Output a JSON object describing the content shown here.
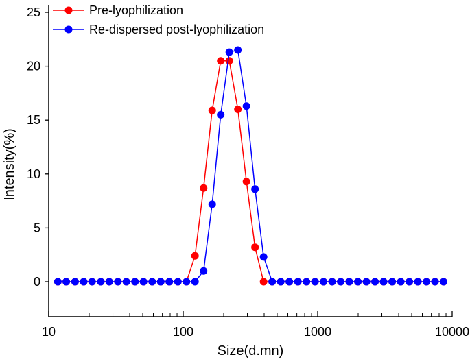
{
  "chart_data": {
    "type": "line",
    "xlabel": "Size(d.mn)",
    "ylabel": "Intensity(%)",
    "xscale": "log",
    "xlim": [
      10,
      10000
    ],
    "ylim": [
      -3.2,
      25.5
    ],
    "xticks": [
      "10",
      "100",
      "1000",
      "10000"
    ],
    "yticks": [
      "0",
      "5",
      "10",
      "15",
      "20",
      "25"
    ],
    "grid": false,
    "legend_position": "top-left",
    "x": [
      11.7,
      13.5,
      15.7,
      18.2,
      21.0,
      24.4,
      28.2,
      32.7,
      37.8,
      43.8,
      50.7,
      58.8,
      68.1,
      78.8,
      91.3,
      105.7,
      122.4,
      141.8,
      164.2,
      190.1,
      220.2,
      255.0,
      295.3,
      342.0,
      396.1,
      458.7,
      531.2,
      615.1,
      712.4,
      825.0,
      955.4,
      1106,
      1281,
      1484,
      1718,
      1990,
      2305,
      2669,
      3091,
      3580,
      4145,
      4801,
      5560,
      6439,
      7456,
      8635
    ],
    "series": [
      {
        "name": "Pre-lyophilization",
        "color": "#ff0000",
        "values": [
          0,
          0,
          0,
          0,
          0,
          0,
          0,
          0,
          0,
          0,
          0,
          0,
          0,
          0,
          0,
          0,
          2.4,
          8.7,
          15.9,
          20.5,
          20.5,
          16.0,
          9.3,
          3.2,
          0,
          0,
          0,
          0,
          0,
          0,
          0,
          0,
          0,
          0,
          0,
          0,
          0,
          0,
          0,
          0,
          0,
          0,
          0,
          0,
          0,
          0
        ]
      },
      {
        "name": "Re-dispersed post-lyophilization",
        "color": "#0000ff",
        "values": [
          0,
          0,
          0,
          0,
          0,
          0,
          0,
          0,
          0,
          0,
          0,
          0,
          0,
          0,
          0,
          0,
          0,
          1.0,
          7.2,
          15.5,
          21.3,
          21.5,
          16.3,
          8.6,
          2.3,
          0,
          0,
          0,
          0,
          0,
          0,
          0,
          0,
          0,
          0,
          0,
          0,
          0,
          0,
          0,
          0,
          0,
          0,
          0,
          0,
          0
        ]
      }
    ]
  }
}
